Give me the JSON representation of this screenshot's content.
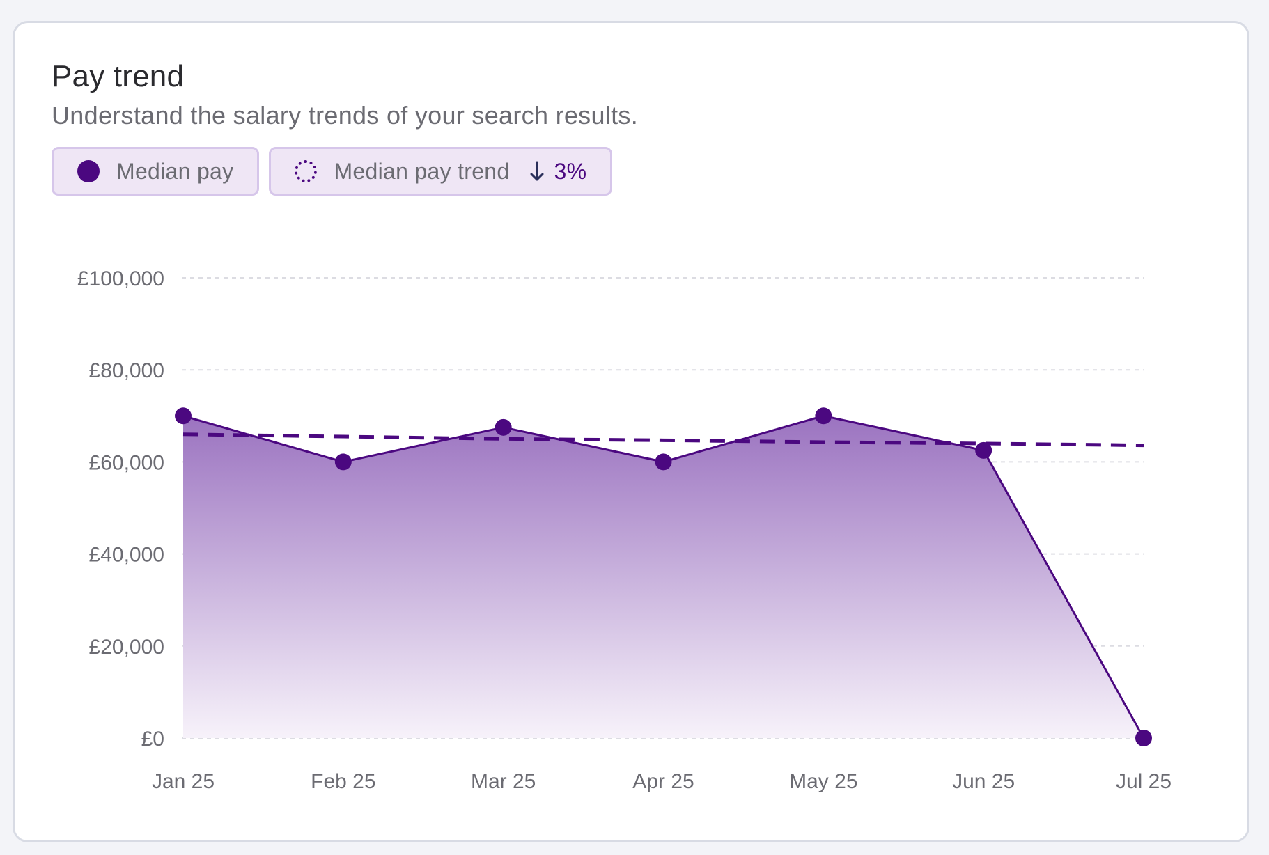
{
  "card": {
    "title": "Pay trend",
    "subtitle": "Understand the salary trends of your search results."
  },
  "legend": {
    "median_pay_label": "Median pay",
    "median_pay_trend_label": "Median pay trend",
    "trend_change": "3%",
    "trend_direction_icon": "arrow-down-icon"
  },
  "colors": {
    "series": "#4b0880",
    "area_top": "#9b73c0",
    "area_bottom": "#f7f2fa",
    "grid": "#dcdce2",
    "chip_bg": "#efe6f5",
    "chip_border": "#d6c6ea"
  },
  "chart_data": {
    "type": "area",
    "categories": [
      "Jan 25",
      "Feb 25",
      "Mar 25",
      "Apr 25",
      "May 25",
      "Jun 25",
      "Jul 25"
    ],
    "series": [
      {
        "name": "Median pay",
        "values": [
          70000,
          60000,
          67500,
          60000,
          70000,
          62500,
          0
        ]
      },
      {
        "name": "Median pay trend",
        "values": [
          66000,
          65500,
          65000,
          64700,
          64300,
          64000,
          63600
        ]
      }
    ],
    "y_ticks": [
      0,
      20000,
      40000,
      60000,
      80000,
      100000
    ],
    "y_tick_labels": [
      "£0",
      "£20,000",
      "£40,000",
      "£60,000",
      "£80,000",
      "£100,000"
    ],
    "ylim": [
      0,
      100000
    ],
    "grid": true,
    "legend_placement": "top-left"
  }
}
